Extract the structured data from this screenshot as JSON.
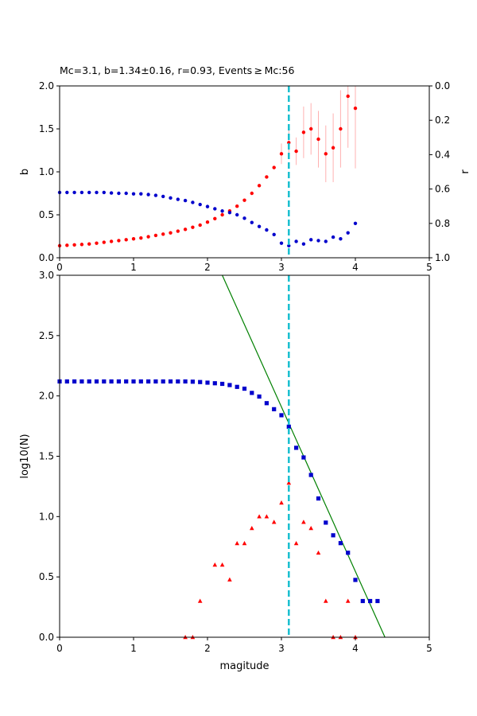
{
  "chart_data": [
    {
      "type": "scatter",
      "title": "Mc=3.1, b=1.34±0.16, r=0.93, Events ≥ Mc:56",
      "xlabel": "",
      "ylabel": "b",
      "ylabel_right": "r",
      "xlim": [
        0,
        5
      ],
      "ylim": [
        0,
        2
      ],
      "ylim_right": [
        1,
        0
      ],
      "x_ticks": [
        "0",
        "1",
        "2",
        "3",
        "4",
        "5"
      ],
      "y_ticks": [
        "0.0",
        "0.5",
        "1.0",
        "1.5",
        "2.0"
      ],
      "y_ticks_right": [
        "0.0",
        "0.2",
        "0.4",
        "0.6",
        "0.8",
        "1.0"
      ],
      "grid": false,
      "mc_line": 3.1,
      "series": [
        {
          "role": "b-value",
          "color": "#ff0000",
          "marker": "circle",
          "x": [
            0.0,
            0.1,
            0.2,
            0.3,
            0.4,
            0.5,
            0.6,
            0.7,
            0.8,
            0.9,
            1.0,
            1.1,
            1.2,
            1.3,
            1.4,
            1.5,
            1.6,
            1.7,
            1.8,
            1.9,
            2.0,
            2.1,
            2.2,
            2.3,
            2.4,
            2.5,
            2.6,
            2.7,
            2.8,
            2.9,
            3.0,
            3.1,
            3.2,
            3.3,
            3.4,
            3.5,
            3.6,
            3.7,
            3.8,
            3.9,
            4.0
          ],
          "y": [
            0.14,
            0.145,
            0.15,
            0.155,
            0.16,
            0.17,
            0.18,
            0.19,
            0.2,
            0.21,
            0.22,
            0.23,
            0.245,
            0.26,
            0.275,
            0.29,
            0.31,
            0.33,
            0.355,
            0.38,
            0.415,
            0.455,
            0.5,
            0.545,
            0.6,
            0.67,
            0.75,
            0.84,
            0.94,
            1.05,
            1.21,
            1.34,
            1.24,
            1.46,
            1.5,
            1.38,
            1.21,
            1.28,
            1.5,
            1.88,
            1.74
          ],
          "err": [
            0,
            0,
            0,
            0,
            0,
            0,
            0,
            0,
            0,
            0,
            0,
            0,
            0,
            0,
            0,
            0,
            0,
            0,
            0,
            0,
            0,
            0,
            0,
            0,
            0,
            0,
            0,
            0,
            0,
            0,
            0.12,
            0.16,
            0.16,
            0.3,
            0.3,
            0.33,
            0.33,
            0.4,
            0.45,
            0.6,
            0.7
          ]
        },
        {
          "role": "r-value",
          "axis": "right",
          "color": "#0000cc",
          "marker": "circle",
          "x": [
            0.0,
            0.1,
            0.2,
            0.3,
            0.4,
            0.5,
            0.6,
            0.7,
            0.8,
            0.9,
            1.0,
            1.1,
            1.2,
            1.3,
            1.4,
            1.5,
            1.6,
            1.7,
            1.8,
            1.9,
            2.0,
            2.1,
            2.2,
            2.3,
            2.4,
            2.5,
            2.6,
            2.7,
            2.8,
            2.9,
            3.0,
            3.1,
            3.2,
            3.3,
            3.4,
            3.5,
            3.6,
            3.7,
            3.8,
            3.9,
            4.0
          ],
          "y": [
            0.62,
            0.62,
            0.62,
            0.62,
            0.62,
            0.62,
            0.62,
            0.623,
            0.625,
            0.625,
            0.628,
            0.628,
            0.632,
            0.637,
            0.643,
            0.652,
            0.66,
            0.667,
            0.678,
            0.69,
            0.702,
            0.715,
            0.728,
            0.737,
            0.75,
            0.77,
            0.795,
            0.818,
            0.838,
            0.865,
            0.915,
            0.93,
            0.905,
            0.92,
            0.895,
            0.9,
            0.905,
            0.88,
            0.89,
            0.855,
            0.8
          ]
        }
      ]
    },
    {
      "type": "scatter",
      "title": "",
      "xlabel": "magitude",
      "ylabel": "log10(N)",
      "xlim": [
        0,
        5
      ],
      "ylim": [
        0,
        3
      ],
      "x_ticks": [
        "0",
        "1",
        "2",
        "3",
        "4",
        "5"
      ],
      "y_ticks": [
        "0.0",
        "0.5",
        "1.0",
        "1.5",
        "2.0",
        "2.5",
        "3.0"
      ],
      "grid": false,
      "mc_line": 3.1,
      "fit_line": {
        "color": "#008000",
        "x": [
          2.2,
          4.4
        ],
        "y": [
          3.0,
          0.0
        ]
      },
      "series": [
        {
          "role": "cumulative",
          "color": "#0000cc",
          "marker": "square",
          "x": [
            0.0,
            0.1,
            0.2,
            0.3,
            0.4,
            0.5,
            0.6,
            0.7,
            0.8,
            0.9,
            1.0,
            1.1,
            1.2,
            1.3,
            1.4,
            1.5,
            1.6,
            1.7,
            1.8,
            1.9,
            2.0,
            2.1,
            2.2,
            2.3,
            2.4,
            2.5,
            2.6,
            2.7,
            2.8,
            2.9,
            3.0,
            3.1,
            3.2,
            3.3,
            3.4,
            3.5,
            3.6,
            3.7,
            3.8,
            3.9,
            4.0,
            4.1,
            4.2,
            4.3
          ],
          "y": [
            2.12,
            2.12,
            2.12,
            2.12,
            2.12,
            2.12,
            2.12,
            2.12,
            2.12,
            2.12,
            2.12,
            2.12,
            2.12,
            2.12,
            2.12,
            2.12,
            2.12,
            2.12,
            2.118,
            2.115,
            2.11,
            2.105,
            2.1,
            2.09,
            2.075,
            2.06,
            2.025,
            1.995,
            1.94,
            1.89,
            1.84,
            1.745,
            1.57,
            1.49,
            1.345,
            1.15,
            0.95,
            0.845,
            0.78,
            0.7,
            0.475,
            0.3,
            0.3,
            0.3
          ]
        },
        {
          "role": "non-cumulative",
          "color": "#ff0000",
          "marker": "triangle",
          "x": [
            1.7,
            1.8,
            1.9,
            2.1,
            2.2,
            2.3,
            2.4,
            2.5,
            2.6,
            2.7,
            2.8,
            2.9,
            3.0,
            3.1,
            3.2,
            3.3,
            3.4,
            3.5,
            3.6,
            3.7,
            3.8,
            3.9,
            4.0
          ],
          "y": [
            0.0,
            0.0,
            0.3,
            0.6,
            0.6,
            0.477,
            0.778,
            0.778,
            0.903,
            1.0,
            1.0,
            0.954,
            1.114,
            1.279,
            0.778,
            0.954,
            0.903,
            0.699,
            0.3,
            0.0,
            0.0,
            0.3,
            0.0
          ]
        }
      ]
    }
  ]
}
